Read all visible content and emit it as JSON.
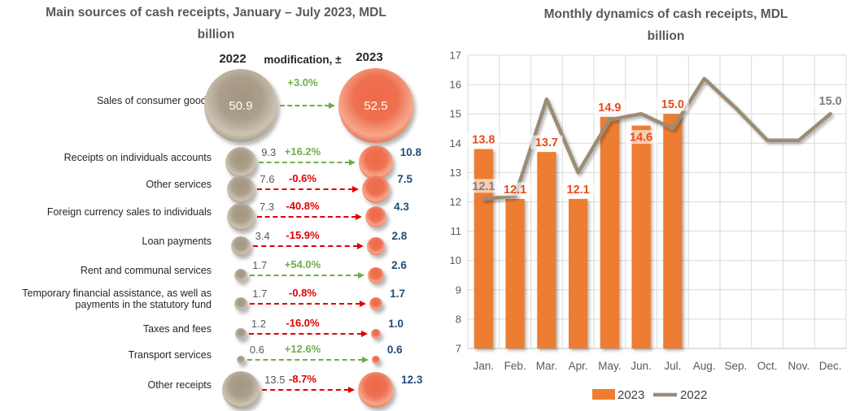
{
  "left_chart": {
    "title_line1": "Main sources of cash receipts, January – July 2023, MDL",
    "title_line2": "billion",
    "header_2022": "2022",
    "header_mod": "modification, ±",
    "header_2023": "2023"
  },
  "right_chart": {
    "title_line1": "Monthly dynamics of cash receipts, MDL",
    "title_line2": "billion"
  },
  "colors": {
    "bar": "#ED7D31",
    "line": "#9C8B76",
    "bar_label": "#E74C1C",
    "line_label": "#7F7F7F",
    "positive": "#70AD47",
    "negative": "#E00000",
    "value_2022": "#595959",
    "value_2023": "#1F4E79",
    "axis_text": "#595959",
    "grid": "#D9D9D9",
    "axis_line": "#BFBFBF",
    "legend_text": "#404040",
    "title": "#595959"
  },
  "chart_data": [
    {
      "type": "bubble-comparison",
      "title": "Main sources of cash receipts, January – July 2023, MDL billion",
      "unit": "MDL billion",
      "columns": [
        "2022",
        "modification, ±",
        "2023"
      ],
      "rows": [
        {
          "label": "Sales of consumer goods",
          "v2022": 50.9,
          "mod": "+3.0%",
          "v2023": 52.5
        },
        {
          "label": "Receipts on individuals accounts",
          "v2022": 9.3,
          "mod": "+16.2%",
          "v2023": 10.8
        },
        {
          "label": "Other services",
          "v2022": 7.6,
          "mod": "-0.6%",
          "v2023": 7.5
        },
        {
          "label": "Foreign currency sales to individuals",
          "v2022": 7.3,
          "mod": "-40.8%",
          "v2023": 4.3
        },
        {
          "label": "Loan payments",
          "v2022": 3.4,
          "mod": "-15.9%",
          "v2023": 2.8
        },
        {
          "label": "Rent and communal services",
          "v2022": 1.7,
          "mod": "+54.0%",
          "v2023": 2.6
        },
        {
          "label": "Temporary financial assistance, as well as payments in the statutory fund",
          "v2022": 1.7,
          "mod": "-0.8%",
          "v2023": 1.7
        },
        {
          "label": "Taxes and fees",
          "v2022": 1.2,
          "mod": "-16.0%",
          "v2023": 1.0
        },
        {
          "label": "Transport services",
          "v2022": 0.6,
          "mod": "+12.6%",
          "v2023": 0.6
        },
        {
          "label": "Other receipts",
          "v2022": 13.5,
          "mod": "-8.7%",
          "v2023": 12.3
        }
      ]
    },
    {
      "type": "bar+line",
      "title": "Monthly dynamics of cash receipts, MDL billion",
      "categories": [
        "Jan.",
        "Feb.",
        "Mar.",
        "Apr.",
        "May.",
        "Jun.",
        "Jul.",
        "Aug.",
        "Sep.",
        "Oct.",
        "Nov.",
        "Dec."
      ],
      "ylim": [
        7,
        17
      ],
      "ytick_step": 1,
      "grid": true,
      "legend_position": "bottom",
      "series": [
        {
          "name": "2023",
          "type": "bar",
          "values": [
            13.8,
            12.1,
            13.7,
            12.1,
            14.9,
            14.6,
            15.0,
            null,
            null,
            null,
            null,
            null
          ]
        },
        {
          "name": "2022",
          "type": "line",
          "values": [
            12.1,
            12.2,
            15.5,
            13.0,
            14.8,
            15.0,
            14.5,
            16.2,
            15.2,
            14.1,
            14.1,
            15.0
          ],
          "labeled_indices": [
            0,
            11
          ]
        }
      ]
    }
  ]
}
